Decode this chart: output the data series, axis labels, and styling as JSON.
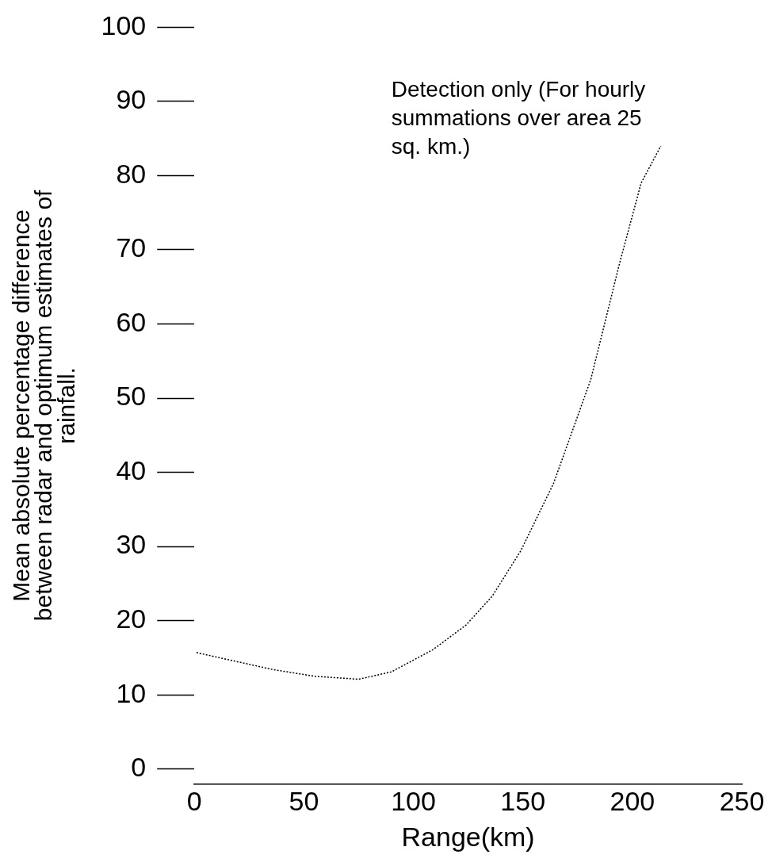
{
  "chart_data": {
    "type": "line",
    "xlabel": "Range(km)",
    "ylabel": "Mean absolute percentage difference between radar and optimum estimates of rainfall.",
    "x": [
      1,
      13,
      36,
      55,
      75,
      90,
      109,
      124,
      136,
      149,
      164,
      181,
      194,
      204,
      213
    ],
    "series": [
      {
        "color": "#000000",
        "values": [
          15.7,
          14.9,
          13.4,
          12.5,
          12.1,
          13.1,
          16.1,
          19.4,
          23.3,
          29.4,
          38.5,
          52.5,
          68,
          79,
          84
        ]
      }
    ],
    "xlim": [
      0,
      250
    ],
    "xticks": [
      0,
      50,
      100,
      150,
      200,
      250
    ],
    "ylim": [
      -2,
      100
    ],
    "yticks": [
      0,
      10,
      20,
      30,
      40,
      50,
      60,
      70,
      80,
      90,
      100
    ],
    "grid": false,
    "legend": false,
    "marker": "none",
    "line_style": "dotted",
    "annotations": [
      {
        "text": "Detection only (For hourly summations over area 25 sq. km.)",
        "x": 213,
        "y": 84
      }
    ]
  }
}
